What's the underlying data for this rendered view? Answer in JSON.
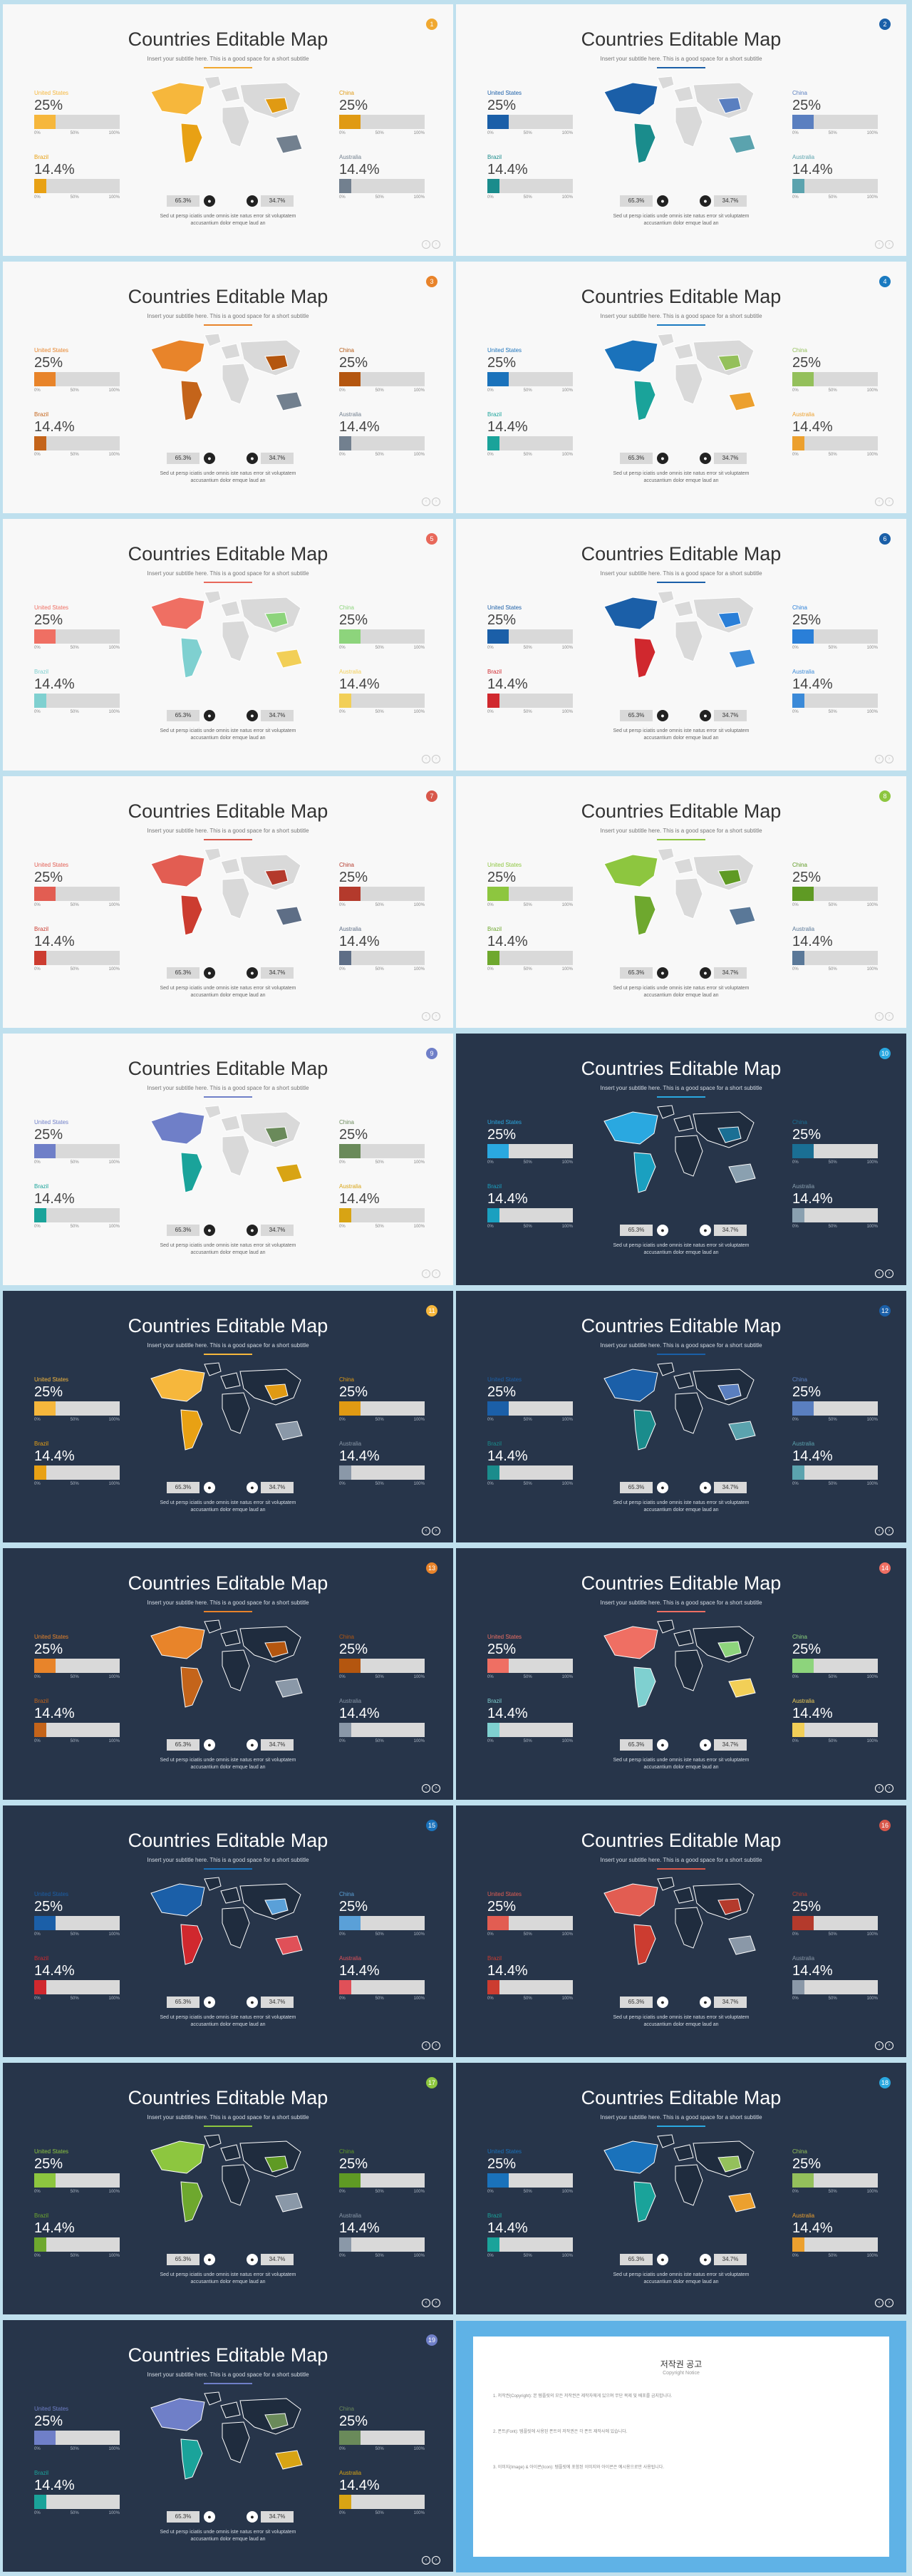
{
  "common": {
    "title": "Countries Editable Map",
    "subtitle": "Insert your subtitle here. This is a good space for a short subtitle",
    "countries": [
      "United States",
      "China",
      "Brazil",
      "Australia"
    ],
    "values": [
      "25%",
      "25%",
      "14.4%",
      "14.4%"
    ],
    "value_fractions": [
      0.25,
      0.25,
      0.144,
      0.144
    ],
    "ticks": [
      "0%",
      "50%",
      "100%"
    ],
    "legend": [
      "65.3%",
      "34.7%"
    ],
    "legend_icons": [
      "male-icon",
      "female-icon"
    ],
    "description": "Sed ut persp iciatis unde omnis iste natus error sit voluptatem accusantium dolor emque laud an"
  },
  "slides": [
    {
      "theme": "light",
      "badge": "1",
      "accent": "#f0a830",
      "colors": [
        "#f6b73c",
        "#e09a13",
        "#e8a114",
        "#72808f"
      ]
    },
    {
      "theme": "light",
      "badge": "2",
      "accent": "#1a5fa8",
      "colors": [
        "#1b5fa8",
        "#5a7fc0",
        "#1a8c8c",
        "#5ba3ae"
      ]
    },
    {
      "theme": "light",
      "badge": "3",
      "accent": "#e8832a",
      "colors": [
        "#e8842a",
        "#b4560f",
        "#c4641a",
        "#72808f"
      ]
    },
    {
      "theme": "light",
      "badge": "4",
      "accent": "#1a7ac0",
      "colors": [
        "#1a72bb",
        "#94c05b",
        "#1aa39a",
        "#eca02e"
      ]
    },
    {
      "theme": "light",
      "badge": "5",
      "accent": "#e8685a",
      "colors": [
        "#ef6f63",
        "#8dd47c",
        "#7fd0d0",
        "#f2cf57"
      ]
    },
    {
      "theme": "light",
      "badge": "6",
      "accent": "#1a5fa8",
      "colors": [
        "#1b5fa8",
        "#2a7fd8",
        "#d0282e",
        "#3b8ad8"
      ]
    },
    {
      "theme": "light",
      "badge": "7",
      "accent": "#d8574a",
      "colors": [
        "#e25d52",
        "#b43a2c",
        "#cc3c30",
        "#5e6e86"
      ]
    },
    {
      "theme": "light",
      "badge": "8",
      "accent": "#8dc63f",
      "colors": [
        "#8dc63f",
        "#5f9a24",
        "#6ea82e",
        "#5a7898"
      ]
    },
    {
      "theme": "light",
      "badge": "9",
      "accent": "#6f7fc8",
      "colors": [
        "#6f7fc8",
        "#6a8a5a",
        "#1aa39a",
        "#d8a414"
      ]
    },
    {
      "theme": "dark",
      "badge": "10",
      "accent": "#2aa8e0",
      "colors": [
        "#2aa8e0",
        "#1a6f94",
        "#1aa0c0",
        "#8aa0b0"
      ]
    },
    {
      "theme": "dark",
      "badge": "11",
      "accent": "#f6b73c",
      "colors": [
        "#f6b73c",
        "#e09a13",
        "#e8a114",
        "#8a98a8"
      ]
    },
    {
      "theme": "dark",
      "badge": "12",
      "accent": "#1a5fa8",
      "colors": [
        "#1b5fa8",
        "#5a7fc0",
        "#1a8c8c",
        "#5ba3ae"
      ]
    },
    {
      "theme": "dark",
      "badge": "13",
      "accent": "#e8832a",
      "colors": [
        "#e8842a",
        "#b4560f",
        "#c4641a",
        "#8a98a8"
      ]
    },
    {
      "theme": "dark",
      "badge": "14",
      "accent": "#ef6f63",
      "colors": [
        "#ef6f63",
        "#8dd47c",
        "#7fd0d0",
        "#f2cf57"
      ]
    },
    {
      "theme": "dark",
      "badge": "15",
      "accent": "#1a72bb",
      "colors": [
        "#1b5fa8",
        "#5aa0d8",
        "#d0282e",
        "#e05058"
      ]
    },
    {
      "theme": "dark",
      "badge": "16",
      "accent": "#d8574a",
      "colors": [
        "#e25d52",
        "#b43a2c",
        "#cc3c30",
        "#8a98a8"
      ]
    },
    {
      "theme": "dark",
      "badge": "17",
      "accent": "#8dc63f",
      "colors": [
        "#8dc63f",
        "#5f9a24",
        "#6ea82e",
        "#8a98a8"
      ]
    },
    {
      "theme": "dark",
      "badge": "18",
      "accent": "#2aa8e0",
      "colors": [
        "#1a72bb",
        "#94c05b",
        "#1aa39a",
        "#eca02e"
      ]
    },
    {
      "theme": "dark",
      "badge": "19",
      "accent": "#6f7fc8",
      "colors": [
        "#6f7fc8",
        "#6a8a5a",
        "#1aa39a",
        "#d8a414"
      ]
    }
  ],
  "copyright": {
    "title": "저작권 공고",
    "subtitle": "Copyright Notice",
    "paragraphs": [
      "1. 저작권(Copyright): 본 템플릿의 모든 저작권은 제작자에게 있으며 무단 복제 및 배포를 금지합니다.",
      "2. 폰트(Font): 템플릿에 사용된 폰트의 저작권은 각 폰트 제작사에 있습니다.",
      "3. 이미지(Image) & 아이콘(Icon): 템플릿에 포함된 이미지와 아이콘은 예시용으로만 사용됩니다."
    ]
  }
}
